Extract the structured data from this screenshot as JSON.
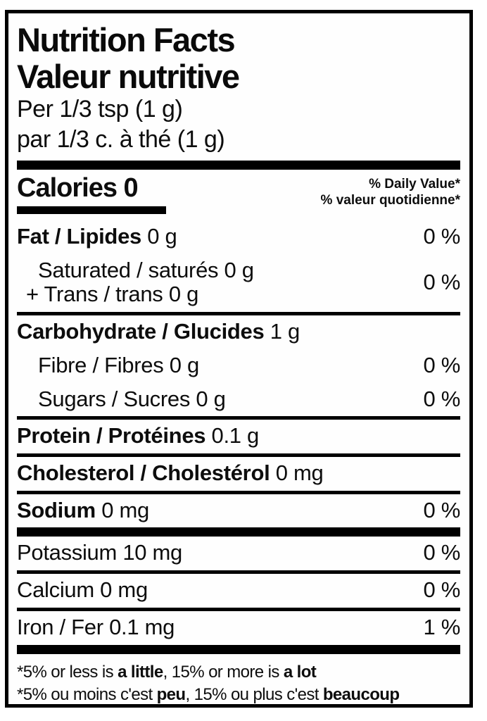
{
  "label": {
    "title_en": "Nutrition Facts",
    "title_fr": "Valeur nutritive",
    "serving_en": "Per 1/3 tsp (1 g)",
    "serving_fr": "par 1/3 c. à thé (1 g)",
    "calories_label": "Calories 0",
    "dv_header_en": "% Daily Value*",
    "dv_header_fr": "% valeur quotidienne*",
    "rows": {
      "fat": {
        "bold": "Fat / Lipides",
        "rest": " 0 g",
        "percent": "0 %"
      },
      "saturated": {
        "line1": "Saturated / saturés 0 g",
        "line2": "+ Trans / trans 0 g",
        "percent": "0 %"
      },
      "carb": {
        "bold": "Carbohydrate / Glucides",
        "rest": " 1 g"
      },
      "fibre": {
        "text": "Fibre / Fibres 0 g",
        "percent": "0 %"
      },
      "sugars": {
        "text": "Sugars / Sucres 0 g",
        "percent": "0 %"
      },
      "protein": {
        "bold": "Protein / Protéines",
        "rest": " 0.1 g"
      },
      "cholesterol": {
        "bold": "Cholesterol / Cholestérol",
        "rest": " 0 mg"
      },
      "sodium": {
        "bold": "Sodium",
        "rest": " 0 mg",
        "percent": "0 %"
      },
      "potassium": {
        "text": "Potassium 10 mg",
        "percent": "0 %"
      },
      "calcium": {
        "text": "Calcium 0 mg",
        "percent": "0 %"
      },
      "iron": {
        "text": "Iron / Fer 0.1 mg",
        "percent": "1 %"
      }
    },
    "footnotes": {
      "en": [
        "*5% or less is ",
        "a little",
        ", 15% or more is ",
        "a lot"
      ],
      "fr": [
        "*5% ou moins c'est ",
        "peu",
        ", 15% ou plus c'est ",
        "beaucoup"
      ]
    },
    "colors": {
      "ink": "#0d0d0d",
      "background": "#fefefe"
    }
  }
}
